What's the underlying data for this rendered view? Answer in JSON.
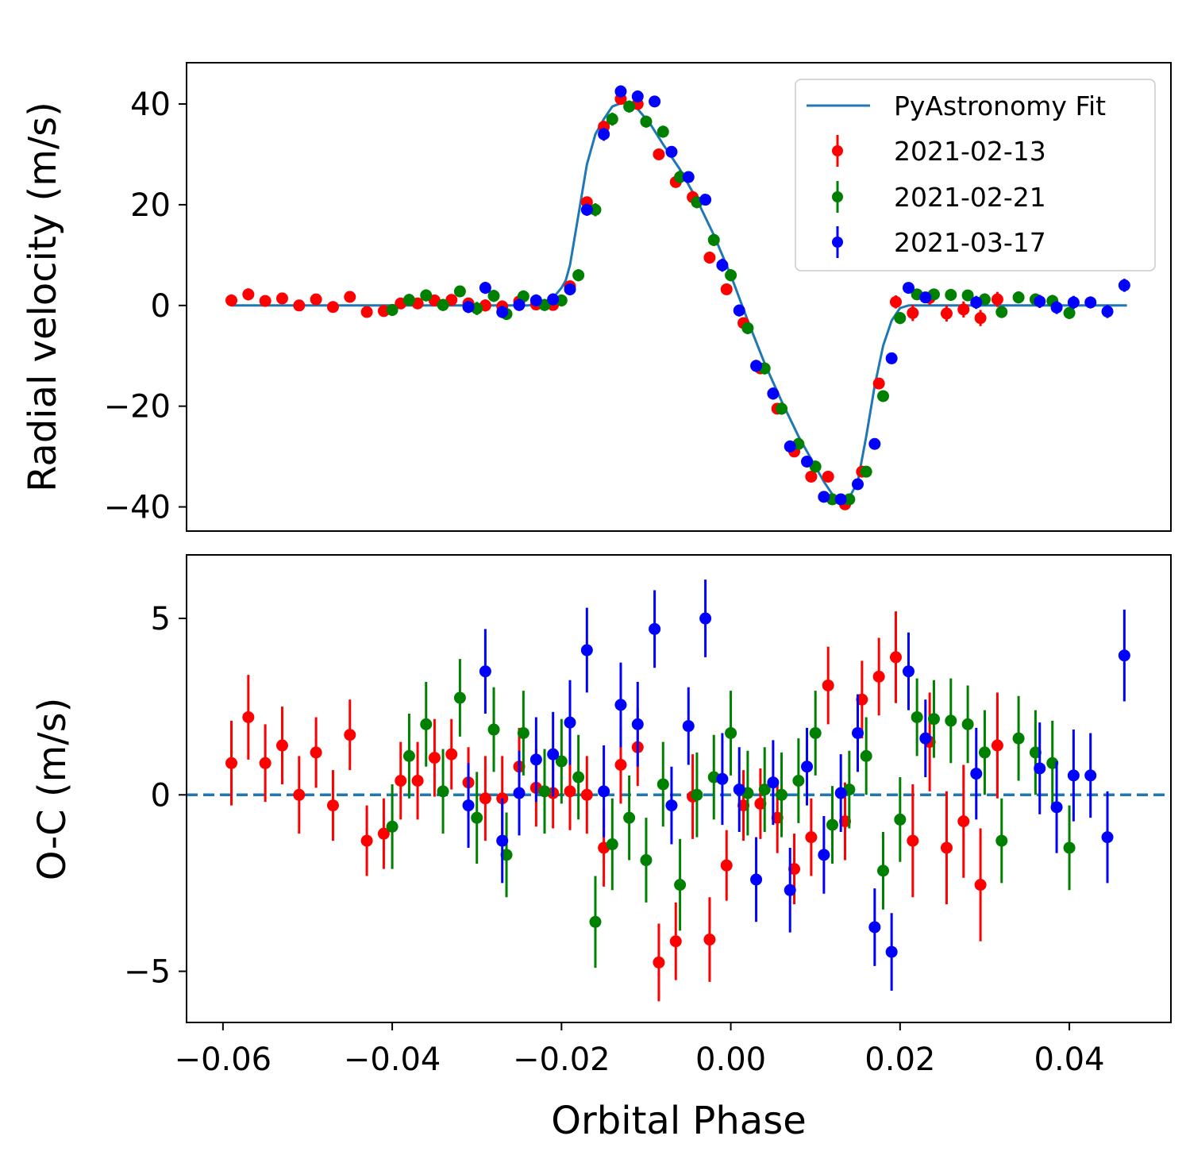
{
  "chart_data": [
    {
      "type": "scatter",
      "ylabel": "Radial velocity (m/s)",
      "xlim": [
        -0.0643,
        0.052
      ],
      "ylim": [
        -44.8,
        48.2
      ],
      "yticks": [
        -40,
        -20,
        0,
        20,
        40
      ],
      "ytick_labels": [
        "−40",
        "−20",
        "0",
        "20",
        "40"
      ],
      "grid": false,
      "legend_position": "top-right",
      "legend": {
        "fit_label": "PyAstronomy Fit",
        "entries": [
          "2021-02-13",
          "2021-02-21",
          "2021-03-17"
        ]
      },
      "fit": {
        "name": "PyAstronomy Fit",
        "color": "#1f77b4",
        "x": [
          -0.059,
          -0.05,
          -0.04,
          -0.03,
          -0.024,
          -0.022,
          -0.021,
          -0.02,
          -0.0195,
          -0.019,
          -0.018,
          -0.017,
          -0.016,
          -0.015,
          -0.014,
          -0.0125,
          -0.011,
          -0.0095,
          -0.008,
          -0.006,
          -0.004,
          -0.002,
          0.0,
          0.002,
          0.004,
          0.006,
          0.008,
          0.01,
          0.011,
          0.012,
          0.013,
          0.014,
          0.015,
          0.016,
          0.017,
          0.018,
          0.019,
          0.02,
          0.021,
          0.022,
          0.03,
          0.04,
          0.0468
        ],
        "y": [
          0,
          0,
          0,
          0,
          0,
          0.5,
          1.5,
          3.5,
          5,
          8,
          18,
          28,
          34,
          37,
          39.5,
          40.5,
          39,
          36,
          32,
          27,
          21,
          14,
          6,
          -3,
          -11.5,
          -19,
          -26,
          -32,
          -35,
          -37.5,
          -38.5,
          -38.2,
          -35,
          -26,
          -16,
          -8,
          -3,
          -0.5,
          0,
          0,
          0,
          0,
          0
        ]
      },
      "series": [
        {
          "name": "2021-02-13",
          "color": "#ff0000",
          "x": [
            -0.059,
            -0.057,
            -0.055,
            -0.053,
            -0.051,
            -0.049,
            -0.047,
            -0.045,
            -0.043,
            -0.041,
            -0.039,
            -0.037,
            -0.035,
            -0.033,
            -0.031,
            -0.029,
            -0.027,
            -0.025,
            -0.023,
            -0.021,
            -0.019,
            -0.017,
            -0.015,
            -0.013,
            -0.011,
            -0.0085,
            -0.0065,
            -0.0045,
            -0.0025,
            -0.0005,
            0.0015,
            0.0035,
            0.0055,
            0.0075,
            0.0095,
            0.0115,
            0.0135,
            0.0155,
            0.0175,
            0.0195,
            0.0215,
            0.0235,
            0.0255,
            0.0275,
            0.0295,
            0.0315
          ],
          "y": [
            1,
            2.2,
            0.9,
            1.4,
            0,
            1.2,
            -0.3,
            1.7,
            -1.3,
            -1.1,
            0.4,
            0.4,
            1,
            1.1,
            0.4,
            0,
            -0.2,
            0.8,
            0.2,
            0.1,
            3.8,
            20.5,
            35.5,
            41,
            40,
            30,
            24.5,
            21.5,
            9.5,
            3.2,
            -3.5,
            -12.5,
            -20.5,
            -29,
            -34,
            -34,
            -39.5,
            -33,
            -15.5,
            0.7,
            -1.5,
            1.5,
            -1.6,
            -0.8,
            -2.5,
            1.2
          ],
          "yerr": [
            1.2,
            1.2,
            1.1,
            1.1,
            1.1,
            1.0,
            1.0,
            1.0,
            1.0,
            1.0,
            1.1,
            1.1,
            1.1,
            1.0,
            1.0,
            1.2,
            1.2,
            1.1,
            1.1,
            1.0,
            1.1,
            1.1,
            1.1,
            1.1,
            1.1,
            1.1,
            1.1,
            1.2,
            1.2,
            1.0,
            1.0,
            1.0,
            1.0,
            1.0,
            1.1,
            1.1,
            1.1,
            1.1,
            1.1,
            1.3,
            1.6,
            1.4,
            1.6,
            1.6,
            1.6,
            1.5
          ]
        },
        {
          "name": "2021-02-21",
          "color": "#008000",
          "x": [
            -0.04,
            -0.038,
            -0.036,
            -0.034,
            -0.032,
            -0.03,
            -0.028,
            -0.0265,
            -0.0245,
            -0.022,
            -0.02,
            -0.018,
            -0.016,
            -0.014,
            -0.012,
            -0.01,
            -0.008,
            -0.006,
            -0.004,
            -0.002,
            0.0,
            0.002,
            0.004,
            0.006,
            0.008,
            0.01,
            0.012,
            0.014,
            0.016,
            0.018,
            0.02,
            0.022,
            0.024,
            0.026,
            0.028,
            0.03,
            0.032,
            0.034,
            0.036,
            0.038,
            0.04
          ],
          "y": [
            -0.9,
            1.1,
            2,
            0.1,
            2.8,
            -0.6,
            1.9,
            -1.7,
            1.8,
            0.1,
            1,
            6,
            19,
            37,
            39.5,
            36.5,
            34.5,
            25.5,
            20.5,
            13,
            6,
            -4.5,
            -12.5,
            -20.5,
            -27.5,
            -32,
            -38.5,
            -38.5,
            -33,
            -18,
            -2.5,
            2.2,
            2.2,
            2.1,
            2,
            1.2,
            -1.3,
            1.6,
            1.2,
            0.9,
            -1.5
          ],
          "yerr": [
            1.2,
            1.2,
            1.2,
            1.2,
            1.1,
            1.3,
            1.2,
            1.2,
            1.2,
            1.2,
            1.2,
            1.2,
            1.3,
            1.3,
            1.2,
            1.2,
            1.2,
            1.3,
            1.2,
            1.2,
            1.2,
            1.2,
            1.2,
            1.2,
            1.2,
            1.2,
            1.1,
            1.1,
            1.1,
            1.1,
            1.2,
            1.1,
            1.1,
            1.2,
            1.1,
            1.2,
            1.2,
            1.2,
            1.2,
            1.2,
            1.2
          ]
        },
        {
          "name": "2021-03-17",
          "color": "#0000ff",
          "x": [
            -0.031,
            -0.029,
            -0.027,
            -0.025,
            -0.023,
            -0.021,
            -0.019,
            -0.017,
            -0.015,
            -0.013,
            -0.011,
            -0.009,
            -0.007,
            -0.005,
            -0.003,
            -0.001,
            0.001,
            0.003,
            0.005,
            0.007,
            0.009,
            0.011,
            0.013,
            0.015,
            0.017,
            0.019,
            0.021,
            0.023,
            0.029,
            0.0365,
            0.0385,
            0.0405,
            0.0425,
            0.0445,
            0.0465
          ],
          "y": [
            -0.3,
            3.5,
            -1.3,
            0.1,
            1,
            1.2,
            3.2,
            19,
            34,
            42.5,
            41.5,
            40.5,
            30.5,
            25.5,
            21,
            8,
            -1,
            -12,
            -17.5,
            -28,
            -31,
            -38,
            -38.5,
            -35.5,
            -27.5,
            -10.5,
            3.5,
            1.6,
            0.6,
            0.8,
            -0.4,
            0.6,
            0.6,
            -1.2,
            4
          ],
          "yerr": [
            1.2,
            1.2,
            1.2,
            1.2,
            1.2,
            1.2,
            1.2,
            1.2,
            1.3,
            1.2,
            1.2,
            1.1,
            1.1,
            1.1,
            1.1,
            1.3,
            1.2,
            1.2,
            1.2,
            1.2,
            1.1,
            1.1,
            1.1,
            1.1,
            1.1,
            1.1,
            1.1,
            1.1,
            1.3,
            1.3,
            1.3,
            1.3,
            1.2,
            1.3,
            1.3
          ]
        }
      ]
    },
    {
      "type": "scatter",
      "xlabel": "Orbital Phase",
      "ylabel": "O-C (m/s)",
      "xlim": [
        -0.0643,
        0.052
      ],
      "ylim": [
        -6.45,
        6.8
      ],
      "xticks": [
        -0.06,
        -0.04,
        -0.02,
        0.0,
        0.02,
        0.04
      ],
      "xtick_labels": [
        "−0.06",
        "−0.04",
        "−0.02",
        "0.00",
        "0.02",
        "0.04"
      ],
      "yticks": [
        -5,
        0,
        5
      ],
      "ytick_labels": [
        "−5",
        "0",
        "5"
      ],
      "grid": false,
      "reference_line": {
        "y": 0,
        "style": "dashed",
        "color": "#1f77b4"
      },
      "series": [
        {
          "name": "2021-02-13",
          "color": "#ff0000",
          "x": [
            -0.059,
            -0.057,
            -0.055,
            -0.053,
            -0.051,
            -0.049,
            -0.047,
            -0.045,
            -0.043,
            -0.041,
            -0.039,
            -0.037,
            -0.035,
            -0.033,
            -0.031,
            -0.029,
            -0.027,
            -0.025,
            -0.023,
            -0.021,
            -0.019,
            -0.017,
            -0.015,
            -0.013,
            -0.011,
            -0.0085,
            -0.0065,
            -0.0045,
            -0.0025,
            -0.0005,
            0.0015,
            0.0035,
            0.0055,
            0.0075,
            0.0095,
            0.0115,
            0.0135,
            0.0155,
            0.0175,
            0.0195,
            0.0215,
            0.0235,
            0.0255,
            0.0275,
            0.0295,
            0.0315
          ],
          "y": [
            0.9,
            2.2,
            0.9,
            1.4,
            0,
            1.2,
            -0.3,
            1.7,
            -1.3,
            -1.1,
            0.4,
            0.4,
            1.05,
            1.15,
            0.35,
            -0.1,
            -0.1,
            0.8,
            0.2,
            0.05,
            0.1,
            0,
            -1.5,
            0.85,
            1.35,
            -4.75,
            -4.15,
            -0.05,
            -4.1,
            -2.0,
            -0.3,
            -0.25,
            -0.65,
            -2.1,
            -1.2,
            3.1,
            -0.75,
            2.7,
            3.35,
            3.9,
            -1.3,
            1.5,
            -1.5,
            -0.75,
            -2.55,
            1.4
          ],
          "yerr": [
            1.2,
            1.2,
            1.1,
            1.1,
            1.1,
            1.0,
            1.0,
            1.0,
            1.0,
            1.0,
            1.1,
            1.1,
            1.1,
            1.0,
            1.0,
            1.2,
            1.2,
            1.1,
            1.1,
            1.0,
            1.1,
            1.1,
            1.1,
            1.1,
            1.1,
            1.1,
            1.1,
            1.2,
            1.2,
            1.0,
            1.0,
            1.0,
            1.0,
            1.0,
            1.1,
            1.1,
            1.1,
            1.1,
            1.1,
            1.3,
            1.6,
            1.4,
            1.6,
            1.6,
            1.6,
            1.5
          ]
        },
        {
          "name": "2021-02-21",
          "color": "#008000",
          "x": [
            -0.04,
            -0.038,
            -0.036,
            -0.034,
            -0.032,
            -0.03,
            -0.028,
            -0.0265,
            -0.0245,
            -0.022,
            -0.02,
            -0.018,
            -0.016,
            -0.014,
            -0.012,
            -0.01,
            -0.008,
            -0.006,
            -0.004,
            -0.002,
            0.0,
            0.002,
            0.004,
            0.006,
            0.008,
            0.01,
            0.012,
            0.014,
            0.016,
            0.018,
            0.02,
            0.022,
            0.024,
            0.026,
            0.028,
            0.03,
            0.032,
            0.034,
            0.036,
            0.038,
            0.04
          ],
          "y": [
            -0.9,
            1.1,
            2.0,
            0.1,
            2.75,
            -0.65,
            1.85,
            -1.7,
            1.75,
            0.1,
            0.95,
            0.5,
            -3.6,
            -1.4,
            -0.65,
            -1.85,
            0.3,
            -2.55,
            0.0,
            0.5,
            1.75,
            0.05,
            0.15,
            0.0,
            0.4,
            1.75,
            -0.85,
            0.15,
            1.1,
            -2.15,
            -0.7,
            2.2,
            2.15,
            2.1,
            2.0,
            1.2,
            -1.3,
            1.6,
            1.2,
            0.9,
            -1.5
          ],
          "yerr": [
            1.2,
            1.2,
            1.2,
            1.2,
            1.1,
            1.3,
            1.2,
            1.2,
            1.2,
            1.2,
            1.2,
            1.2,
            1.3,
            1.3,
            1.2,
            1.2,
            1.2,
            1.3,
            1.2,
            1.2,
            1.2,
            1.2,
            1.2,
            1.2,
            1.2,
            1.2,
            1.1,
            1.1,
            1.1,
            1.1,
            1.2,
            1.1,
            1.1,
            1.2,
            1.1,
            1.2,
            1.2,
            1.2,
            1.2,
            1.2,
            1.2
          ]
        },
        {
          "name": "2021-03-17",
          "color": "#0000ff",
          "x": [
            -0.031,
            -0.029,
            -0.027,
            -0.025,
            -0.023,
            -0.021,
            -0.019,
            -0.017,
            -0.015,
            -0.013,
            -0.011,
            -0.009,
            -0.007,
            -0.005,
            -0.003,
            -0.001,
            0.001,
            0.003,
            0.005,
            0.007,
            0.009,
            0.011,
            0.013,
            0.015,
            0.017,
            0.019,
            0.021,
            0.023,
            0.029,
            0.0365,
            0.0385,
            0.0405,
            0.0425,
            0.0445,
            0.0465
          ],
          "y": [
            -0.3,
            3.5,
            -1.3,
            0.05,
            1.0,
            1.15,
            2.05,
            4.1,
            0.1,
            2.55,
            2.0,
            4.7,
            -0.3,
            1.95,
            5.0,
            0.45,
            0.15,
            -2.4,
            0.35,
            -2.7,
            0.8,
            -1.7,
            0.05,
            1.75,
            -3.75,
            -4.45,
            3.5,
            1.6,
            0.6,
            0.75,
            -0.35,
            0.55,
            0.55,
            -1.2,
            3.95
          ],
          "yerr": [
            1.2,
            1.2,
            1.2,
            1.2,
            1.2,
            1.2,
            1.2,
            1.2,
            1.3,
            1.2,
            1.2,
            1.1,
            1.1,
            1.1,
            1.1,
            1.3,
            1.2,
            1.2,
            1.2,
            1.2,
            1.1,
            1.1,
            1.1,
            1.1,
            1.1,
            1.1,
            1.1,
            1.1,
            1.3,
            1.3,
            1.3,
            1.3,
            1.2,
            1.3,
            1.3
          ]
        }
      ]
    }
  ]
}
